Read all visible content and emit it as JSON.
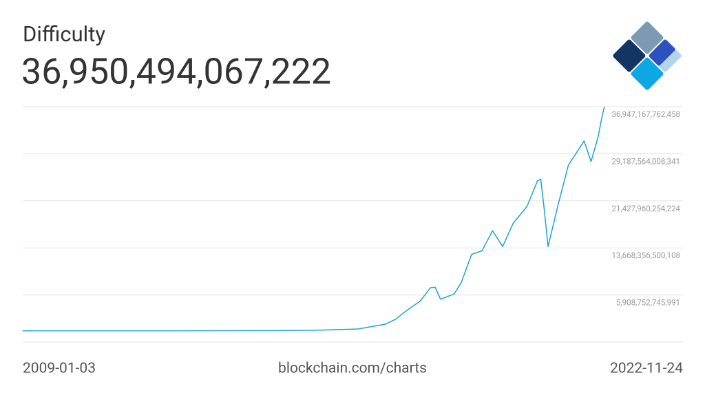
{
  "chart_data": {
    "type": "line",
    "title": "Difficulty",
    "current_value": "36,950,494,067,222",
    "source": "blockchain.com/charts",
    "color": "#1ba3d8",
    "xlim": [
      "2009-01-03",
      "2022-11-24"
    ],
    "x": [
      "2009-01-03",
      "2011-10-01",
      "2015-01-15",
      "2016-01-10",
      "2017-01-05",
      "2017-09-01",
      "2017-11-28",
      "2018-03-01",
      "2018-07-01",
      "2018-09-28",
      "2018-11-08",
      "2018-12-25",
      "2019-04-24",
      "2019-06-25",
      "2019-09-22",
      "2019-12-22",
      "2020-03-23",
      "2020-06-19",
      "2020-09-18",
      "2021-01-17",
      "2021-04-18",
      "2021-05-17",
      "2021-06-14",
      "2021-07-20",
      "2021-10-12",
      "2022-01-13",
      "2022-05-30",
      "2022-07-30",
      "2022-09-27",
      "2022-11-08",
      "2022-11-24"
    ],
    "values": [
      1,
      1300000,
      40000000000,
      100000000000,
      300000000000,
      1100000000000,
      1900000000000,
      3300000000000,
      4900000000000,
      7100000000000,
      7200000000000,
      5200000000000,
      6100000000000,
      8000000000000,
      12600000000000,
      13200000000000,
      16500000000000,
      13900000000000,
      17700000000000,
      20500000000000,
      24700000000000,
      25000000000000,
      20500000000000,
      13900000000000,
      20500000000000,
      27300000000000,
      31300000000000,
      27900000000000,
      31800000000000,
      35800000000000,
      36947000000000
    ],
    "ylim": [
      -1850851008126,
      36947167762458
    ],
    "yticks": [
      {
        "value": 5908752745991,
        "label": "5,908,752,745,991"
      },
      {
        "value": 13668356500108,
        "label": "13,668,356,500,108"
      },
      {
        "value": 21427960254224,
        "label": "21,427,960,254,224"
      },
      {
        "value": 29187564008341,
        "label": "29,187,564,008,341"
      },
      {
        "value": 36947167762458,
        "label": "36,947,167,762,458"
      }
    ],
    "grid": true
  }
}
